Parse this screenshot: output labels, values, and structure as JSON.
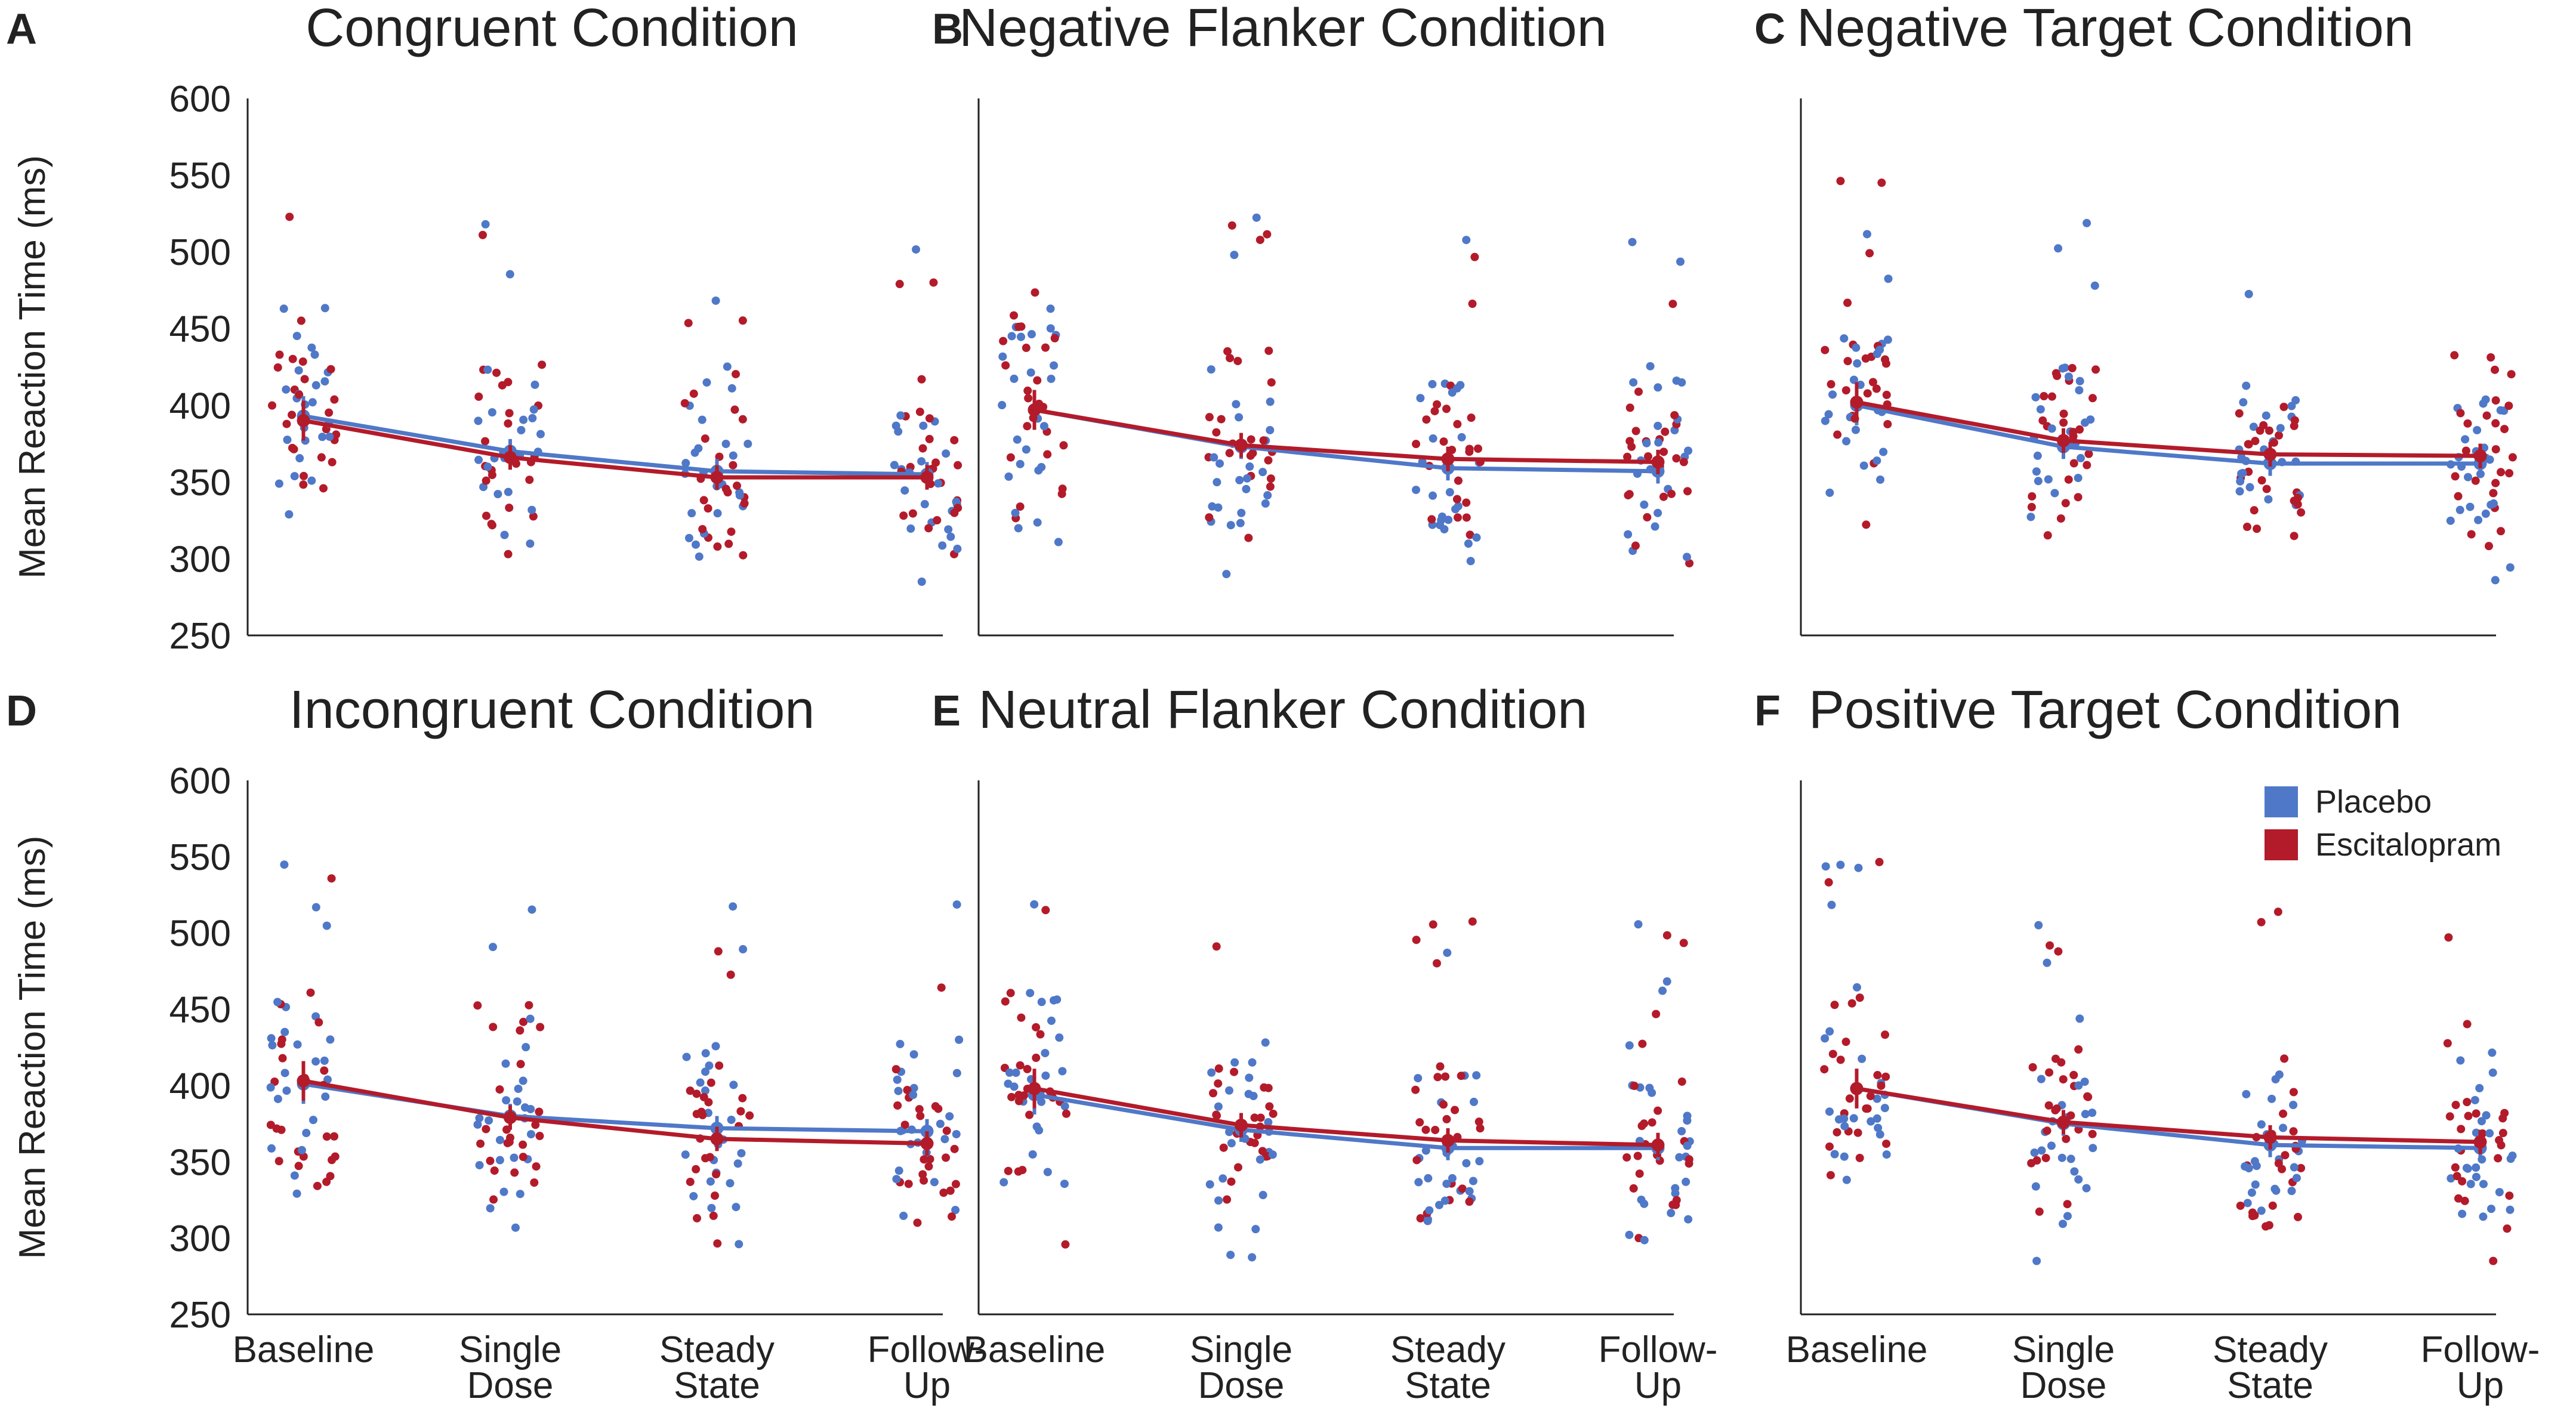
{
  "chart_data": {
    "type": "scatter",
    "ylabel": "Mean Reaction Time (ms)",
    "ylim": [
      250,
      600
    ],
    "yticks": [
      250,
      300,
      350,
      400,
      450,
      500,
      550,
      600
    ],
    "categories": [
      [
        "Baseline"
      ],
      [
        "Single",
        "Dose"
      ],
      [
        "Steady",
        "State"
      ],
      [
        "Follow-",
        "Up"
      ]
    ],
    "legend": [
      {
        "name": "Placebo",
        "color": "#4f78c8"
      },
      {
        "name": "Escitalopram",
        "color": "#b31b2a"
      }
    ],
    "panels": [
      {
        "letter": "A",
        "title": "Congruent Condition",
        "means": {
          "Placebo": [
            393,
            370,
            357,
            355
          ],
          "Escitalopram": [
            390,
            366,
            353,
            353
          ]
        }
      },
      {
        "letter": "B",
        "title": "Negative Flanker Condition",
        "means": {
          "Placebo": [
            397,
            373,
            359,
            357
          ],
          "Escitalopram": [
            397,
            374,
            365,
            363
          ]
        }
      },
      {
        "letter": "C",
        "title": "Negative Target Condition",
        "means": {
          "Placebo": [
            400,
            373,
            362,
            362
          ],
          "Escitalopram": [
            402,
            377,
            368,
            367
          ]
        }
      },
      {
        "letter": "D",
        "title": "Incongruent Condition",
        "means": {
          "Placebo": [
            401,
            380,
            372,
            370
          ],
          "Escitalopram": [
            403,
            379,
            365,
            362
          ]
        }
      },
      {
        "letter": "E",
        "title": "Neutral Flanker Condition",
        "means": {
          "Placebo": [
            394,
            371,
            359,
            359
          ],
          "Escitalopram": [
            398,
            374,
            364,
            361
          ]
        }
      },
      {
        "letter": "F",
        "title": "Positive Target Condition",
        "means": {
          "Placebo": [
            398,
            375,
            361,
            359
          ],
          "Escitalopram": [
            398,
            376,
            366,
            363
          ]
        }
      }
    ]
  }
}
